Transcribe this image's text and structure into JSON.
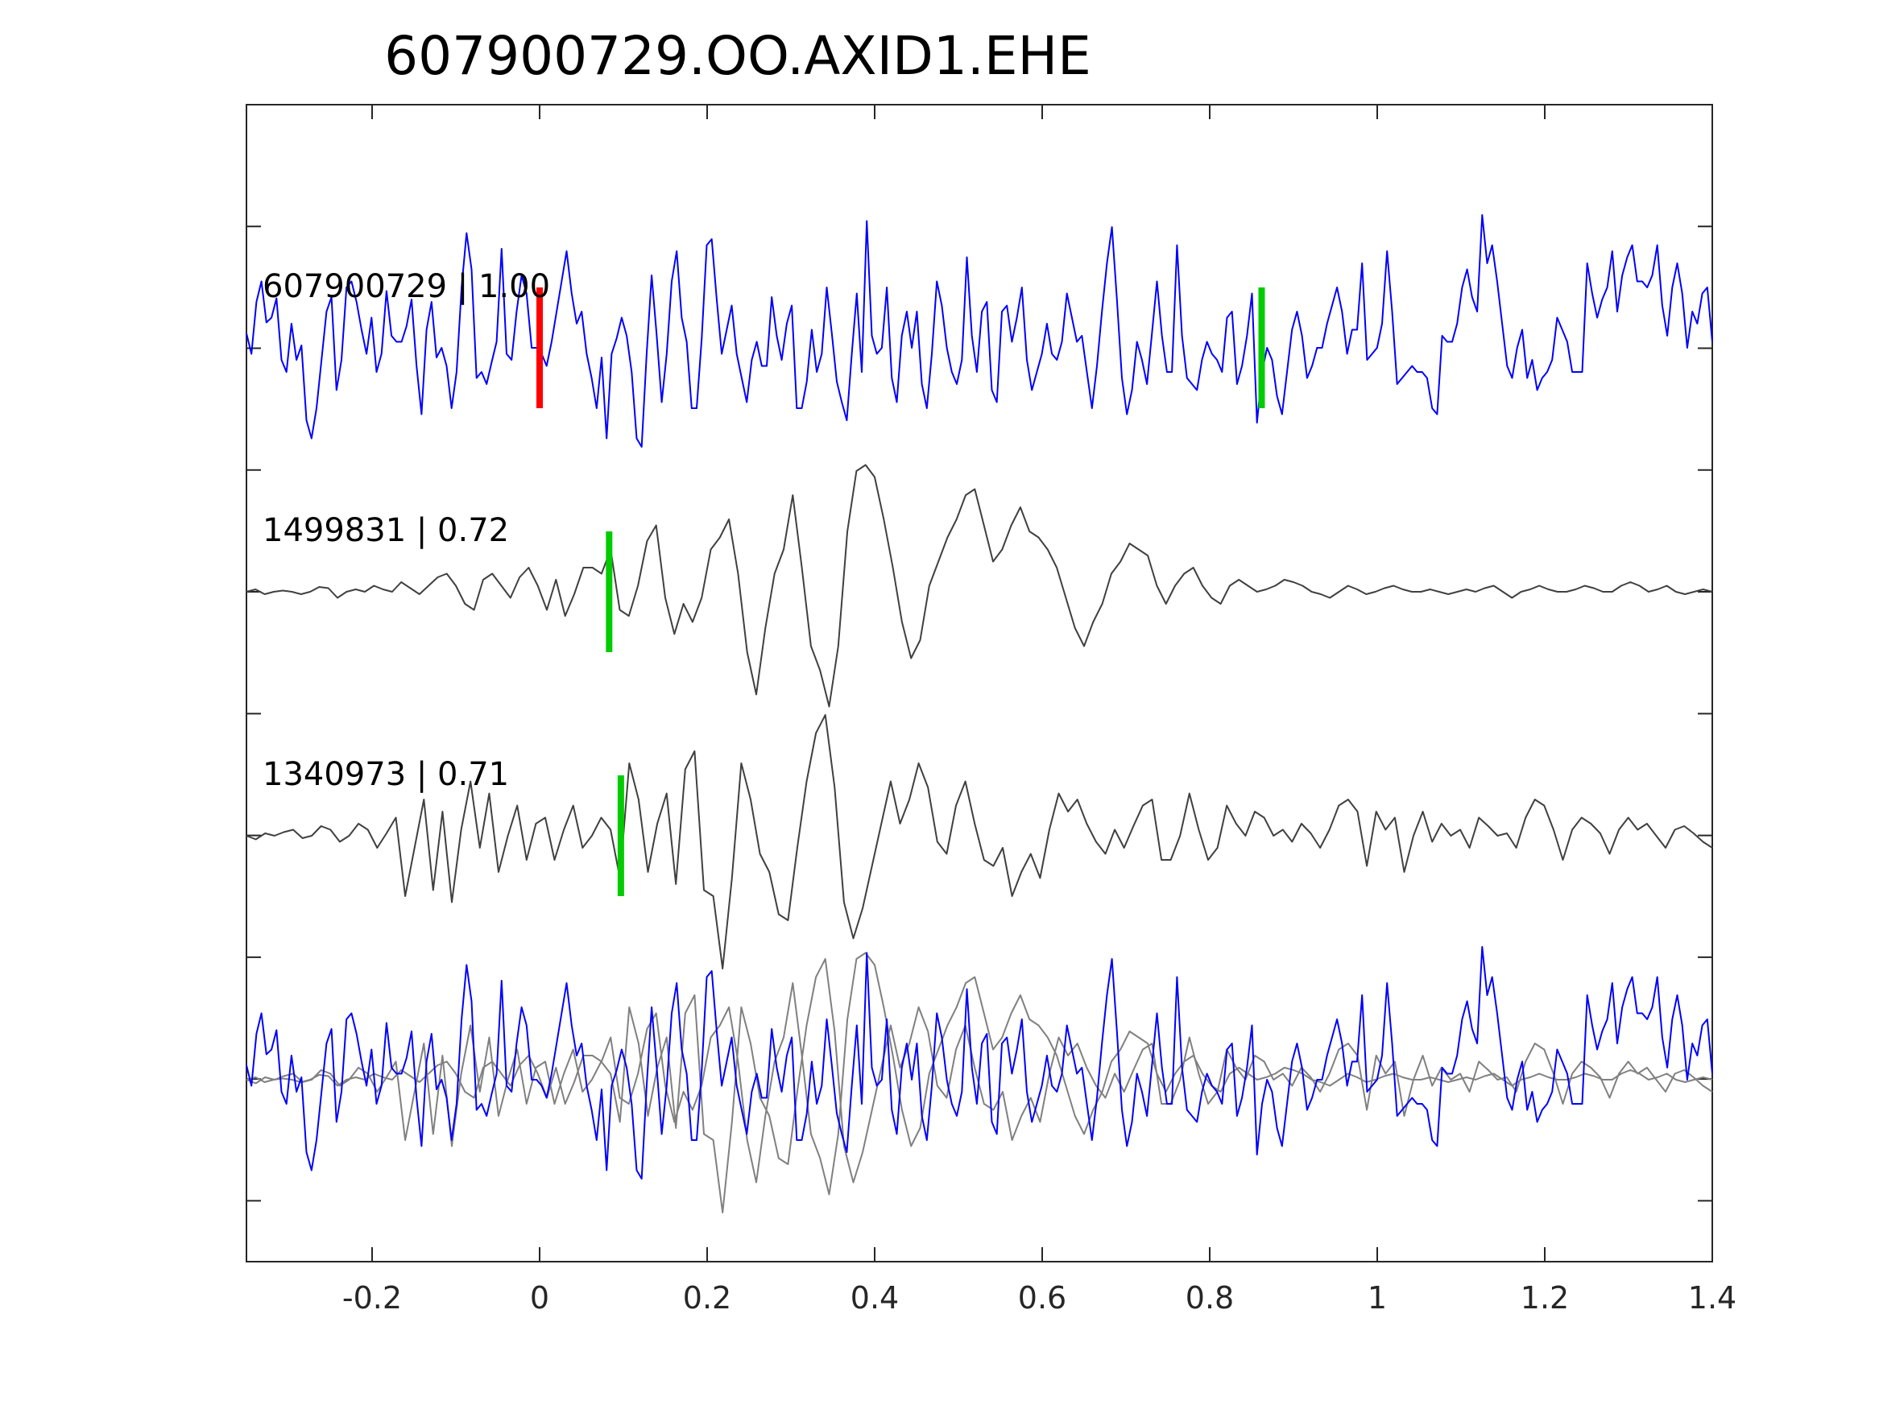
{
  "chart_data": {
    "type": "line",
    "title": "607900729.OO.AXID1.EHE",
    "xlabel": "",
    "ylabel": "",
    "xlim": [
      -0.35,
      1.4
    ],
    "x_ticks": [
      -0.2,
      0,
      0.2,
      0.4,
      0.6,
      0.8,
      1,
      1.2,
      1.4
    ],
    "x_tick_labels": [
      "-0.2",
      "0",
      "0.2",
      "0.4",
      "0.6",
      "0.8",
      "1",
      "1.2",
      "1.4"
    ],
    "grid": false,
    "colors": {
      "target": "#0000ff",
      "template": "#404040",
      "overlay_template": "#808080",
      "pick_reference": "#ff0000",
      "pick_match": "#00cc00",
      "axes": "#262626"
    },
    "traces": [
      {
        "label": "607900729 | 1.00",
        "role": "target",
        "color": "#0000ff",
        "picks": [
          {
            "time": 0.0,
            "color": "#ff0000"
          },
          {
            "time": 0.862,
            "color": "#00cc00"
          }
        ],
        "samples": [
          0.12,
          -0.05,
          0.38,
          0.55,
          0.21,
          0.25,
          0.41,
          -0.1,
          -0.2,
          0.2,
          -0.1,
          0.02,
          -0.6,
          -0.75,
          -0.5,
          -0.1,
          0.3,
          0.42,
          -0.35,
          -0.1,
          0.5,
          0.55,
          0.38,
          0.15,
          -0.05,
          0.25,
          -0.2,
          -0.05,
          0.47,
          0.1,
          0.05,
          0.05,
          0.18,
          0.4,
          -0.15,
          -0.55,
          0.15,
          0.38,
          -0.08,
          0.0,
          -0.15,
          -0.5,
          -0.2,
          0.5,
          0.95,
          0.65,
          -0.25,
          -0.2,
          -0.3,
          -0.12,
          0.05,
          0.82,
          -0.05,
          -0.1,
          0.3,
          0.6,
          0.45,
          0.0,
          0.0,
          -0.05,
          -0.15,
          0.05,
          0.3,
          0.55,
          0.8,
          0.45,
          0.2,
          0.3,
          -0.05,
          -0.25,
          -0.5,
          -0.08,
          -0.75,
          -0.05,
          0.08,
          0.25,
          0.1,
          -0.2,
          -0.75,
          -0.82,
          -0.05,
          0.6,
          0.1,
          -0.45,
          -0.05,
          0.55,
          0.8,
          0.25,
          0.05,
          -0.5,
          -0.5,
          0.08,
          0.85,
          0.9,
          0.4,
          -0.05,
          0.15,
          0.35,
          -0.05,
          -0.25,
          -0.45,
          -0.1,
          0.05,
          -0.15,
          -0.15,
          0.42,
          0.1,
          -0.1,
          0.2,
          0.35,
          -0.5,
          -0.5,
          -0.28,
          0.15,
          -0.2,
          -0.05,
          0.5,
          0.12,
          -0.28,
          -0.45,
          -0.6,
          -0.05,
          0.45,
          -0.2,
          1.05,
          0.1,
          -0.05,
          0.0,
          0.5,
          -0.25,
          -0.45,
          0.1,
          0.3,
          0.0,
          0.3,
          -0.3,
          -0.5,
          -0.05,
          0.55,
          0.35,
          0.0,
          -0.2,
          -0.3,
          -0.1,
          0.75,
          0.1,
          -0.2,
          0.3,
          0.38,
          -0.35,
          -0.45,
          0.3,
          0.35,
          0.05,
          0.25,
          0.5,
          -0.1,
          -0.35,
          -0.2,
          -0.05,
          0.2,
          -0.05,
          -0.1,
          0.05,
          0.45,
          0.25,
          0.05,
          0.1,
          -0.2,
          -0.5,
          -0.15,
          0.3,
          0.7,
          1.0,
          0.4,
          -0.25,
          -0.55,
          -0.35,
          0.05,
          -0.1,
          -0.3,
          0.12,
          0.55,
          0.1,
          -0.2,
          -0.2,
          0.85,
          0.1,
          -0.25,
          -0.3,
          -0.35,
          -0.1,
          0.05,
          -0.05,
          -0.1,
          -0.2,
          0.25,
          0.3,
          -0.3,
          -0.15,
          0.1,
          0.45,
          -0.62,
          -0.2,
          0.0,
          -0.1,
          -0.4,
          -0.55,
          -0.2,
          0.15,
          0.3,
          0.1,
          -0.25,
          -0.15,
          0.0,
          0.0,
          0.2,
          0.35,
          0.5,
          0.3,
          -0.05,
          0.15,
          0.15,
          0.7,
          -0.1,
          -0.05,
          0.0,
          0.2,
          0.8,
          0.3,
          -0.3,
          -0.25,
          -0.2,
          -0.15,
          -0.2,
          -0.2,
          -0.25,
          -0.5,
          -0.55,
          0.1,
          0.05,
          0.05,
          0.2,
          0.5,
          0.65,
          0.42,
          0.3,
          1.1,
          0.7,
          0.85,
          0.55,
          0.2,
          -0.15,
          -0.25,
          0.0,
          0.15,
          -0.25,
          -0.1,
          -0.35,
          -0.25,
          -0.2,
          -0.1,
          0.25,
          0.15,
          0.05,
          -0.2,
          -0.2,
          -0.2,
          0.7,
          0.45,
          0.25,
          0.4,
          0.5,
          0.8,
          0.3,
          0.6,
          0.75,
          0.85,
          0.55,
          0.55,
          0.5,
          0.6,
          0.85,
          0.35,
          0.1,
          0.5,
          0.7,
          0.45,
          0.0,
          0.3,
          0.2,
          0.45,
          0.5,
          0.05
        ],
        "baseline_note": ""
      },
      {
        "label": "1499831 | 0.72",
        "role": "template",
        "color": "#404040",
        "picks": [
          {
            "time": 0.083,
            "color": "#00cc00"
          }
        ],
        "samples": [
          0.0,
          0.02,
          -0.02,
          0.0,
          0.01,
          0.0,
          -0.02,
          0.0,
          0.04,
          0.03,
          -0.05,
          0.0,
          0.02,
          0.0,
          0.05,
          0.02,
          0.0,
          0.08,
          0.03,
          -0.02,
          0.05,
          0.12,
          0.15,
          0.05,
          -0.1,
          -0.15,
          0.1,
          0.15,
          0.05,
          -0.05,
          0.12,
          0.2,
          0.05,
          -0.15,
          0.1,
          -0.2,
          -0.02,
          0.2,
          0.2,
          0.15,
          0.35,
          -0.15,
          -0.2,
          0.05,
          0.42,
          0.55,
          -0.05,
          -0.35,
          -0.1,
          -0.25,
          -0.05,
          0.35,
          0.45,
          0.6,
          0.15,
          -0.5,
          -0.85,
          -0.3,
          0.15,
          0.35,
          0.8,
          0.2,
          -0.45,
          -0.65,
          -0.95,
          -0.45,
          0.5,
          1.0,
          1.05,
          0.95,
          0.6,
          0.2,
          -0.25,
          -0.55,
          -0.4,
          0.05,
          0.25,
          0.45,
          0.6,
          0.8,
          0.85,
          0.55,
          0.25,
          0.35,
          0.55,
          0.7,
          0.5,
          0.45,
          0.35,
          0.2,
          -0.05,
          -0.3,
          -0.45,
          -0.25,
          -0.1,
          0.15,
          0.25,
          0.4,
          0.35,
          0.3,
          0.05,
          -0.1,
          0.05,
          0.15,
          0.2,
          0.05,
          -0.05,
          -0.1,
          0.05,
          0.1,
          0.05,
          0.0,
          0.02,
          0.05,
          0.1,
          0.08,
          0.05,
          0.0,
          -0.02,
          -0.05,
          0.0,
          0.05,
          0.02,
          -0.02,
          0.0,
          0.03,
          0.05,
          0.02,
          0.0,
          0.0,
          0.02,
          0.0,
          -0.02,
          0.0,
          0.02,
          0.0,
          0.03,
          0.05,
          0.0,
          -0.05,
          0.0,
          0.02,
          0.05,
          0.02,
          0.0,
          0.0,
          0.02,
          0.05,
          0.03,
          0.0,
          0.0,
          0.05,
          0.08,
          0.05,
          0.0,
          0.02,
          0.05,
          0.0,
          -0.02,
          0.0,
          0.02,
          0.0
        ],
        "baseline_note": ""
      },
      {
        "label": "1340973 | 0.71",
        "role": "template",
        "color": "#404040",
        "picks": [
          {
            "time": 0.097,
            "color": "#00cc00"
          }
        ],
        "samples": [
          0.0,
          -0.03,
          0.02,
          0.0,
          0.03,
          0.05,
          -0.02,
          0.0,
          0.08,
          0.05,
          -0.05,
          0.0,
          0.1,
          0.05,
          -0.1,
          0.02,
          0.15,
          -0.5,
          -0.1,
          0.3,
          -0.45,
          0.2,
          -0.55,
          0.05,
          0.45,
          -0.1,
          0.35,
          -0.3,
          0.0,
          0.25,
          -0.2,
          0.1,
          0.15,
          -0.2,
          0.05,
          0.25,
          -0.1,
          0.0,
          0.15,
          0.05,
          -0.35,
          0.6,
          0.3,
          -0.3,
          0.1,
          0.35,
          -0.4,
          0.55,
          0.7,
          -0.45,
          -0.5,
          -1.1,
          -0.35,
          0.6,
          0.3,
          -0.15,
          -0.3,
          -0.65,
          -0.7,
          -0.1,
          0.45,
          0.85,
          1.0,
          0.4,
          -0.55,
          -0.85,
          -0.6,
          -0.25,
          0.1,
          0.45,
          0.1,
          0.3,
          0.6,
          0.4,
          -0.05,
          -0.15,
          0.25,
          0.45,
          0.1,
          -0.2,
          -0.25,
          -0.1,
          -0.5,
          -0.3,
          -0.15,
          -0.35,
          0.05,
          0.35,
          0.2,
          0.3,
          0.1,
          -0.05,
          -0.15,
          0.05,
          -0.1,
          0.08,
          0.25,
          0.3,
          -0.2,
          -0.2,
          0.0,
          0.35,
          0.05,
          -0.2,
          -0.1,
          0.25,
          0.1,
          0.0,
          0.2,
          0.15,
          0.0,
          0.05,
          -0.05,
          0.1,
          0.02,
          -0.1,
          0.05,
          0.25,
          0.3,
          0.2,
          -0.25,
          0.2,
          0.05,
          0.15,
          -0.3,
          0.0,
          0.2,
          -0.05,
          0.1,
          0.0,
          0.05,
          -0.1,
          0.15,
          0.08,
          0.0,
          0.02,
          -0.1,
          0.15,
          0.3,
          0.25,
          0.05,
          -0.2,
          0.05,
          0.15,
          0.1,
          0.02,
          -0.15,
          0.05,
          0.15,
          0.05,
          0.1,
          0.0,
          -0.1,
          0.05,
          0.08,
          0.02,
          -0.05,
          -0.1
        ],
        "baseline_note": ""
      }
    ]
  }
}
